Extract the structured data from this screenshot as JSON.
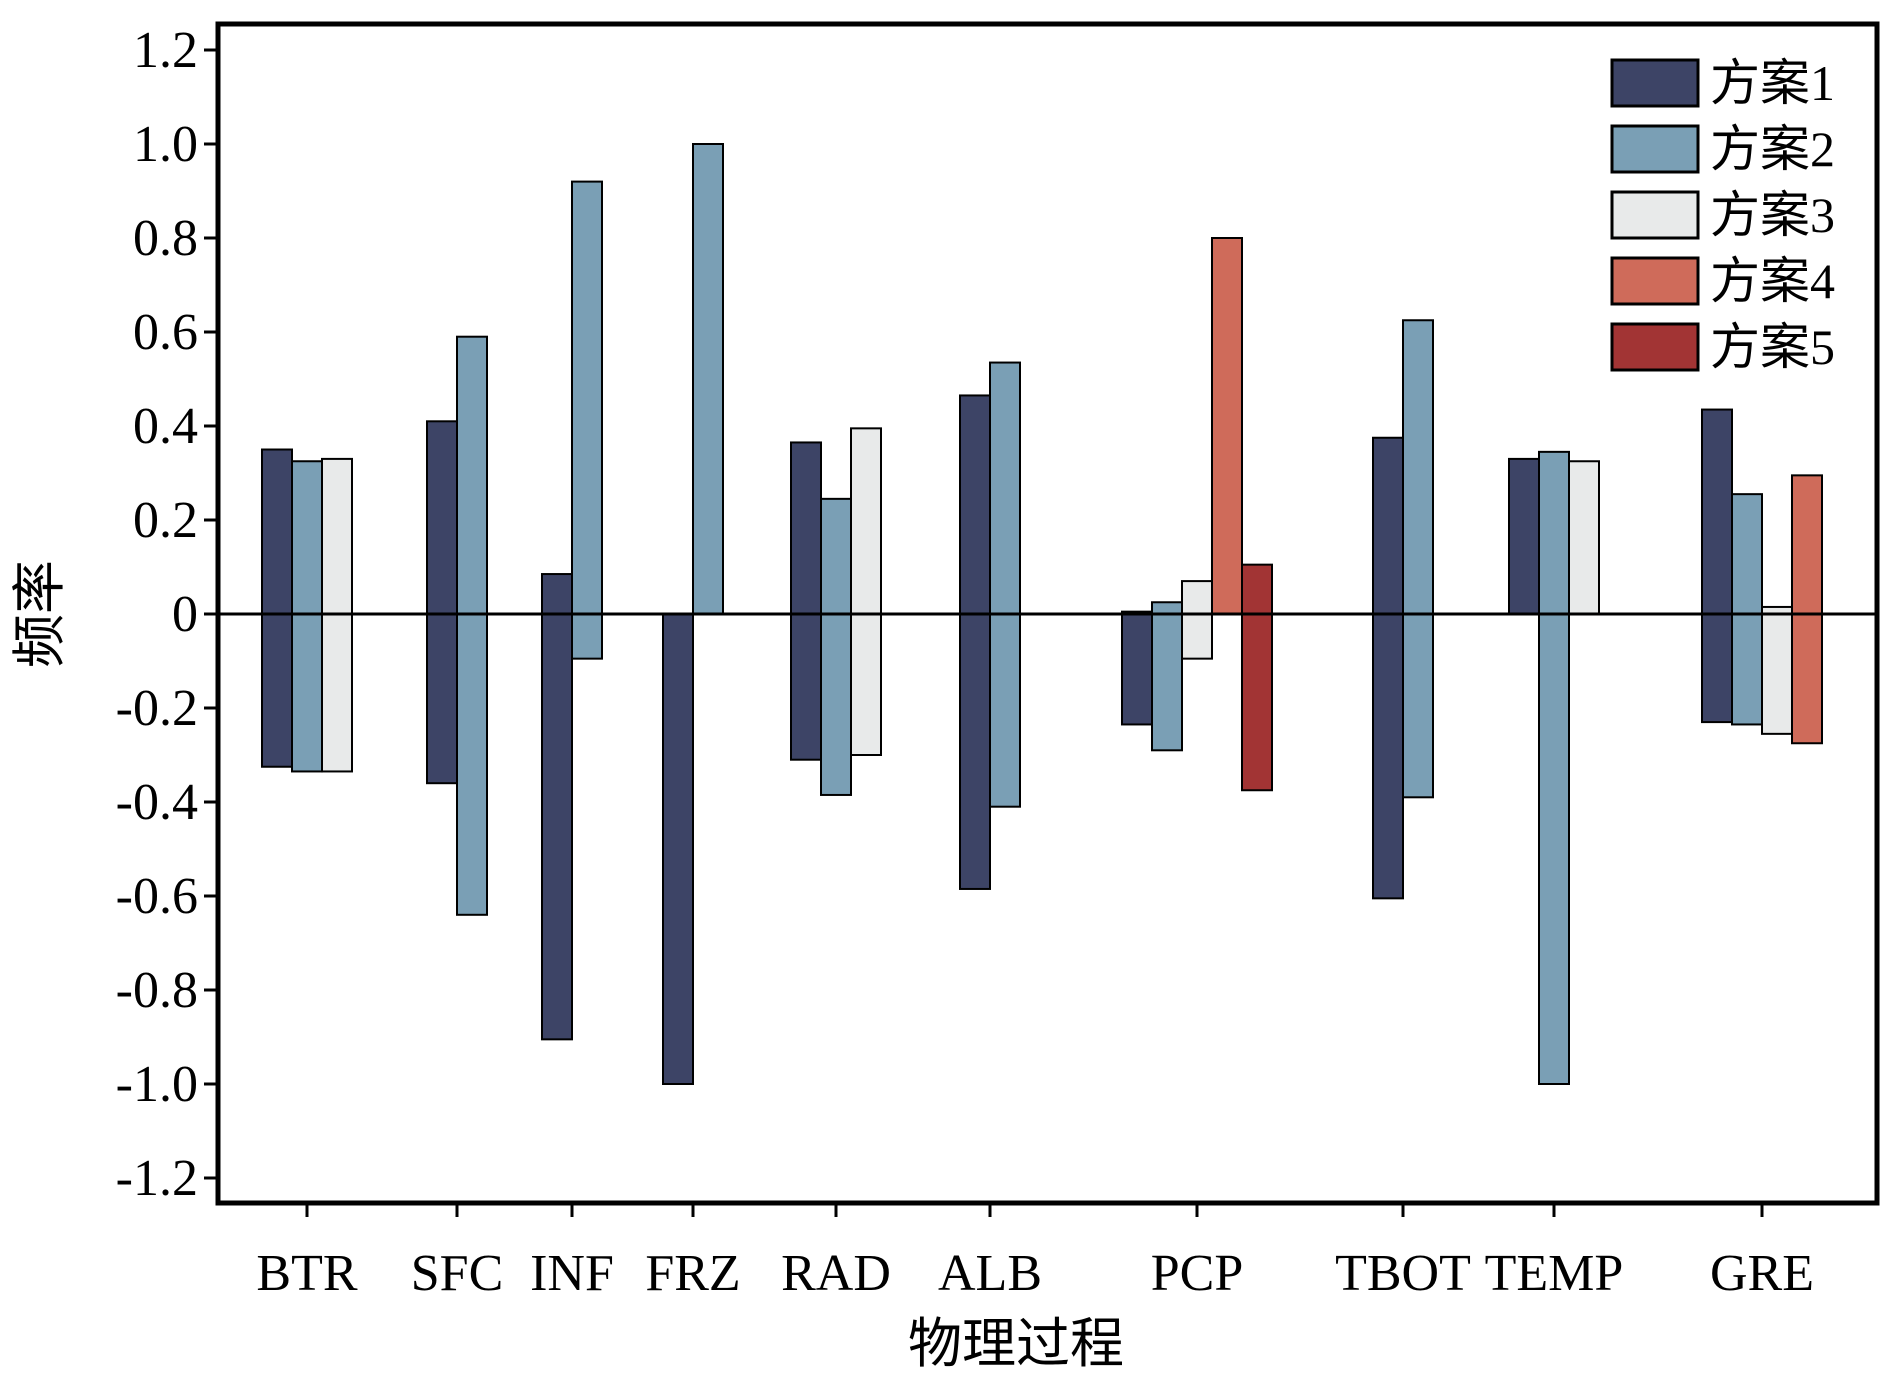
{
  "chart_data": {
    "type": "bar",
    "xlabel": "物理过程",
    "ylabel": "频率",
    "ylim": [
      -1.25,
      1.25
    ],
    "yticks": [
      "1.2",
      "1.0",
      "0.8",
      "0.6",
      "0.4",
      "0.2",
      "0",
      "-0.2",
      "-0.4",
      "-0.6",
      "-0.8",
      "-1.0",
      "-1.2"
    ],
    "ytick_values": [
      1.2,
      1.0,
      0.8,
      0.6,
      0.4,
      0.2,
      0,
      -0.2,
      -0.4,
      -0.6,
      -0.8,
      -1.0,
      -1.2
    ],
    "zero_line": true,
    "grid": false,
    "legend_position": "top-right",
    "colors": {
      "方案1": "#3d4466",
      "方案2": "#7a9fb5",
      "方案3": "#e8eaea",
      "方案4": "#cf6b5a",
      "方案5": "#a23434",
      "axis": "#000000"
    },
    "legend": [
      "方案1",
      "方案2",
      "方案3",
      "方案4",
      "方案5"
    ],
    "categories": [
      "BTR",
      "SFC",
      "INF",
      "FRZ",
      "RAD",
      "ALB",
      "PCP",
      "TBOT",
      "TEMP",
      "GRE"
    ],
    "groups": [
      {
        "category": "BTR",
        "bars": [
          {
            "scheme": "方案1",
            "pos": 0.35,
            "neg": -0.325
          },
          {
            "scheme": "方案2",
            "pos": 0.325,
            "neg": -0.335
          },
          {
            "scheme": "方案3",
            "pos": 0.33,
            "neg": -0.335
          }
        ]
      },
      {
        "category": "SFC",
        "bars": [
          {
            "scheme": "方案1",
            "pos": 0.41,
            "neg": -0.36
          },
          {
            "scheme": "方案2",
            "pos": 0.59,
            "neg": -0.64
          }
        ]
      },
      {
        "category": "INF",
        "bars": [
          {
            "scheme": "方案1",
            "pos": 0.085,
            "neg": -0.905
          },
          {
            "scheme": "方案2",
            "pos": 0.92,
            "neg": -0.095
          }
        ]
      },
      {
        "category": "FRZ",
        "bars": [
          {
            "scheme": "方案1",
            "pos": 0,
            "neg": -1.0
          },
          {
            "scheme": "方案2",
            "pos": 1.0,
            "neg": 0
          }
        ]
      },
      {
        "category": "RAD",
        "bars": [
          {
            "scheme": "方案1",
            "pos": 0.365,
            "neg": -0.31
          },
          {
            "scheme": "方案2",
            "pos": 0.245,
            "neg": -0.385
          },
          {
            "scheme": "方案3",
            "pos": 0.395,
            "neg": -0.3
          }
        ]
      },
      {
        "category": "ALB",
        "bars": [
          {
            "scheme": "方案1",
            "pos": 0.465,
            "neg": -0.585
          },
          {
            "scheme": "方案2",
            "pos": 0.535,
            "neg": -0.41
          }
        ]
      },
      {
        "category": "PCP",
        "bars": [
          {
            "scheme": "方案1",
            "pos": 0.005,
            "neg": -0.235
          },
          {
            "scheme": "方案2",
            "pos": 0.025,
            "neg": -0.29
          },
          {
            "scheme": "方案3",
            "pos": 0.07,
            "neg": -0.095
          },
          {
            "scheme": "方案4",
            "pos": 0.8,
            "neg": 0
          },
          {
            "scheme": "方案5",
            "pos": 0.105,
            "neg": -0.375
          }
        ]
      },
      {
        "category": "TBOT",
        "bars": [
          {
            "scheme": "方案1",
            "pos": 0.375,
            "neg": -0.605
          },
          {
            "scheme": "方案2",
            "pos": 0.625,
            "neg": -0.39
          }
        ]
      },
      {
        "category": "TEMP",
        "bars": [
          {
            "scheme": "方案1",
            "pos": 0.33,
            "neg": 0
          },
          {
            "scheme": "方案2",
            "pos": 0.345,
            "neg": -1.0
          },
          {
            "scheme": "方案3",
            "pos": 0.325,
            "neg": 0
          }
        ]
      },
      {
        "category": "GRE",
        "bars": [
          {
            "scheme": "方案1",
            "pos": 0.435,
            "neg": -0.23
          },
          {
            "scheme": "方案2",
            "pos": 0.255,
            "neg": -0.235
          },
          {
            "scheme": "方案3",
            "pos": 0.015,
            "neg": -0.255
          },
          {
            "scheme": "方案4",
            "pos": 0.295,
            "neg": -0.275
          }
        ]
      }
    ]
  }
}
